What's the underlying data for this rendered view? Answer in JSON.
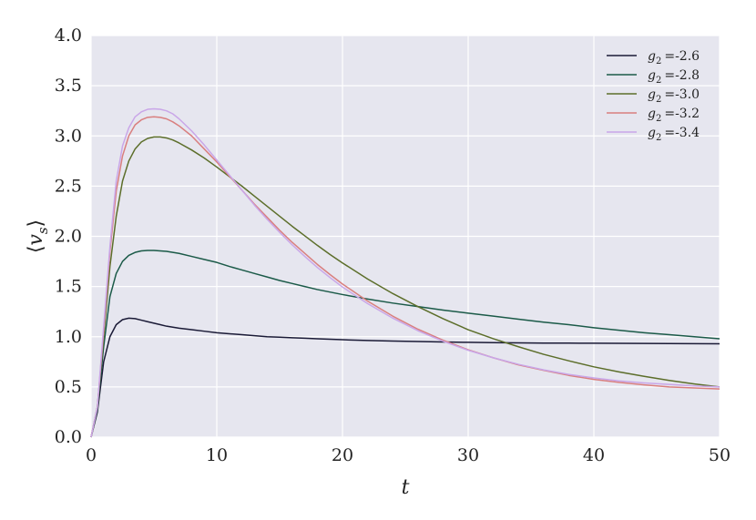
{
  "chart_data": {
    "type": "line",
    "xlabel": "t",
    "ylabel": "⟨v_s⟩",
    "xlim": [
      0,
      50
    ],
    "ylim": [
      0.0,
      4.0
    ],
    "xticks": [
      0,
      10,
      20,
      30,
      40,
      50
    ],
    "yticks": [
      "0.0",
      "0.5",
      "1.0",
      "1.5",
      "2.0",
      "2.5",
      "3.0",
      "3.5",
      "4.0"
    ],
    "grid": true,
    "legend_position": "top-right",
    "x": [
      0,
      0.5,
      1,
      1.5,
      2,
      2.5,
      3,
      3.5,
      4,
      4.5,
      5,
      5.5,
      6,
      6.5,
      7,
      8,
      9,
      10,
      11,
      12,
      13,
      14,
      15,
      16,
      17,
      18,
      19,
      20,
      22,
      24,
      26,
      28,
      30,
      32,
      34,
      36,
      38,
      40,
      42,
      44,
      46,
      48,
      50
    ],
    "series": [
      {
        "name": "g₂ =-2.6",
        "legend_prefix": "g",
        "legend_sub": "2",
        "legend_value": "=-2.6",
        "color": "#1a1a36",
        "width": 1.5,
        "values": [
          0.0,
          0.25,
          0.75,
          1.0,
          1.12,
          1.17,
          1.185,
          1.18,
          1.165,
          1.15,
          1.135,
          1.12,
          1.105,
          1.095,
          1.085,
          1.07,
          1.055,
          1.04,
          1.03,
          1.02,
          1.01,
          1.0,
          0.995,
          0.99,
          0.985,
          0.98,
          0.975,
          0.97,
          0.963,
          0.957,
          0.952,
          0.948,
          0.944,
          0.941,
          0.939,
          0.937,
          0.936,
          0.935,
          0.934,
          0.933,
          0.932,
          0.931,
          0.93
        ]
      },
      {
        "name": "g₂ =-2.8",
        "legend_prefix": "g",
        "legend_sub": "2",
        "legend_value": "=-2.8",
        "color": "#1b5a48",
        "width": 1.5,
        "values": [
          0.0,
          0.28,
          0.9,
          1.4,
          1.63,
          1.75,
          1.81,
          1.84,
          1.855,
          1.86,
          1.86,
          1.855,
          1.85,
          1.84,
          1.83,
          1.8,
          1.77,
          1.74,
          1.7,
          1.665,
          1.63,
          1.595,
          1.56,
          1.53,
          1.5,
          1.47,
          1.445,
          1.42,
          1.375,
          1.335,
          1.3,
          1.265,
          1.235,
          1.205,
          1.175,
          1.145,
          1.12,
          1.09,
          1.065,
          1.04,
          1.02,
          1.0,
          0.98
        ]
      },
      {
        "name": "g₂ =-3.0",
        "legend_prefix": "g",
        "legend_sub": "2",
        "legend_value": "=-3.0",
        "color": "#5c6e2a",
        "width": 1.5,
        "values": [
          0.0,
          0.3,
          1.0,
          1.7,
          2.2,
          2.55,
          2.75,
          2.87,
          2.94,
          2.975,
          2.99,
          2.99,
          2.98,
          2.96,
          2.93,
          2.86,
          2.78,
          2.69,
          2.595,
          2.5,
          2.4,
          2.3,
          2.2,
          2.1,
          2.005,
          1.91,
          1.82,
          1.735,
          1.575,
          1.43,
          1.3,
          1.18,
          1.07,
          0.98,
          0.9,
          0.825,
          0.76,
          0.7,
          0.65,
          0.605,
          0.565,
          0.53,
          0.5
        ]
      },
      {
        "name": "g₂ =-3.2",
        "legend_prefix": "g",
        "legend_sub": "2",
        "legend_value": "=-3.2",
        "color": "#d97f7f",
        "width": 1.5,
        "values": [
          0.0,
          0.3,
          1.05,
          1.85,
          2.45,
          2.8,
          3.0,
          3.11,
          3.16,
          3.185,
          3.19,
          3.185,
          3.17,
          3.14,
          3.1,
          3.0,
          2.87,
          2.74,
          2.6,
          2.46,
          2.32,
          2.19,
          2.06,
          1.94,
          1.83,
          1.72,
          1.62,
          1.525,
          1.355,
          1.205,
          1.075,
          0.965,
          0.87,
          0.79,
          0.72,
          0.665,
          0.615,
          0.575,
          0.545,
          0.52,
          0.5,
          0.49,
          0.48
        ]
      },
      {
        "name": "g₂ =-3.4",
        "legend_prefix": "g",
        "legend_sub": "2",
        "legend_value": "=-3.4",
        "color": "#c9a6e8",
        "width": 1.5,
        "values": [
          0.0,
          0.3,
          1.1,
          1.9,
          2.55,
          2.9,
          3.08,
          3.19,
          3.24,
          3.265,
          3.27,
          3.265,
          3.25,
          3.22,
          3.17,
          3.05,
          2.91,
          2.76,
          2.61,
          2.46,
          2.31,
          2.17,
          2.04,
          1.915,
          1.8,
          1.69,
          1.59,
          1.495,
          1.33,
          1.185,
          1.06,
          0.955,
          0.865,
          0.79,
          0.725,
          0.67,
          0.625,
          0.59,
          0.56,
          0.54,
          0.525,
          0.51,
          0.5
        ]
      }
    ]
  }
}
